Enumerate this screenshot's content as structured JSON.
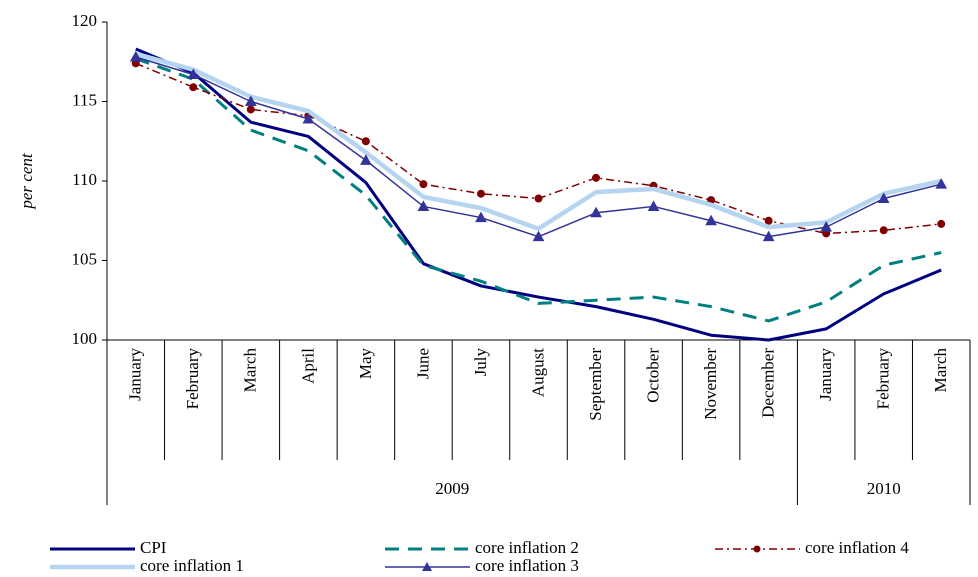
{
  "chart_data": {
    "type": "line",
    "y_label": "per cent",
    "categories": [
      "January",
      "February",
      "March",
      "April",
      "May",
      "June",
      "July",
      "August",
      "September",
      "October",
      "November",
      "December",
      "January",
      "February",
      "March"
    ],
    "year_groups": [
      {
        "label": "2009",
        "months": 12
      },
      {
        "label": "2010",
        "months": 3
      }
    ],
    "ylim": [
      100,
      120
    ],
    "yticks": [
      100,
      105,
      110,
      115,
      120
    ],
    "series": [
      {
        "name": "CPI",
        "color": "#000080",
        "style": "thick",
        "values": [
          118.3,
          116.8,
          113.7,
          112.8,
          109.9,
          104.8,
          103.4,
          102.7,
          102.1,
          101.3,
          100.3,
          100.0,
          100.7,
          102.9,
          104.4
        ]
      },
      {
        "name": "core inflation 2",
        "color": "#008080",
        "style": "dash",
        "values": [
          117.7,
          116.4,
          113.2,
          111.9,
          109.1,
          104.7,
          103.7,
          102.3,
          102.5,
          102.7,
          102.1,
          101.2,
          102.4,
          104.7,
          105.5
        ]
      },
      {
        "name": "core inflation 4",
        "color": "#800000",
        "style": "dashdot",
        "marker": "circle",
        "values": [
          117.4,
          115.9,
          114.5,
          114.1,
          112.5,
          109.8,
          109.2,
          108.9,
          110.2,
          109.7,
          108.8,
          107.5,
          106.7,
          106.9,
          107.3
        ]
      },
      {
        "name": "core inflation 1",
        "color": "#b4d4f0",
        "style": "double",
        "values": [
          118.0,
          117.0,
          115.3,
          114.4,
          111.8,
          109.0,
          108.3,
          107.0,
          109.3,
          109.5,
          108.5,
          107.1,
          107.4,
          109.2,
          110.0
        ]
      },
      {
        "name": "core inflation 3",
        "color": "#333399",
        "style": "thin",
        "marker": "triangle",
        "values": [
          117.8,
          116.7,
          115.0,
          113.9,
          111.3,
          108.4,
          107.7,
          106.5,
          108.0,
          108.4,
          107.5,
          106.5,
          107.1,
          108.9,
          109.8
        ]
      }
    ]
  }
}
